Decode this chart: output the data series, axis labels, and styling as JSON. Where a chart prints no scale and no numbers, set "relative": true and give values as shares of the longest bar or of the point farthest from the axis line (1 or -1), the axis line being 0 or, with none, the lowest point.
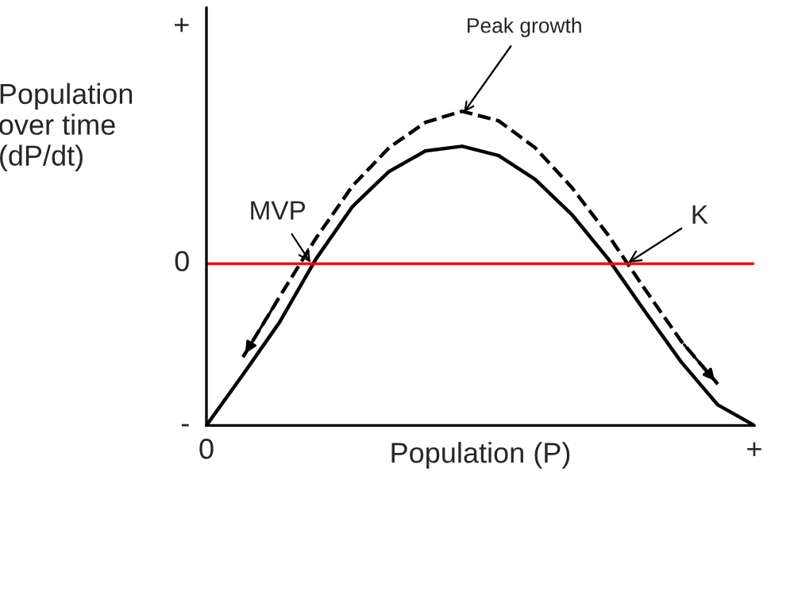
{
  "chart_data": {
    "type": "line",
    "relative": true,
    "xlabel": "Population (P)",
    "ylabel": "Population\nover time\n(dP/dt)",
    "categories": [
      null,
      null,
      null,
      null,
      null,
      null,
      null,
      null,
      null,
      null,
      null,
      null,
      null,
      null,
      null,
      null
    ],
    "series": [
      {
        "color": "#000000",
        "line_style": "solid",
        "values": [
          -1,
          -0.686,
          -0.363,
          0.029,
          0.353,
          0.569,
          0.696,
          0.725,
          0.667,
          0.52,
          0.304,
          0.029,
          -0.294,
          -0.608,
          -0.873,
          -1
        ]
      },
      {
        "color": "#000000",
        "line_style": "dashed",
        "values": [
          null,
          -0.578,
          -0.206,
          0.157,
          0.48,
          0.716,
          0.873,
          0.941,
          0.882,
          0.716,
          0.471,
          0.176,
          -0.157,
          -0.48,
          -0.745,
          null
        ]
      }
    ],
    "ref_lines": [
      {
        "axis": "y",
        "value": 0,
        "label": "0",
        "color": "#ff0000",
        "line_style": "solid"
      }
    ],
    "annotations": [
      "Peak growth",
      "MVP",
      "K",
      "+",
      "-",
      "0",
      "+"
    ]
  }
}
